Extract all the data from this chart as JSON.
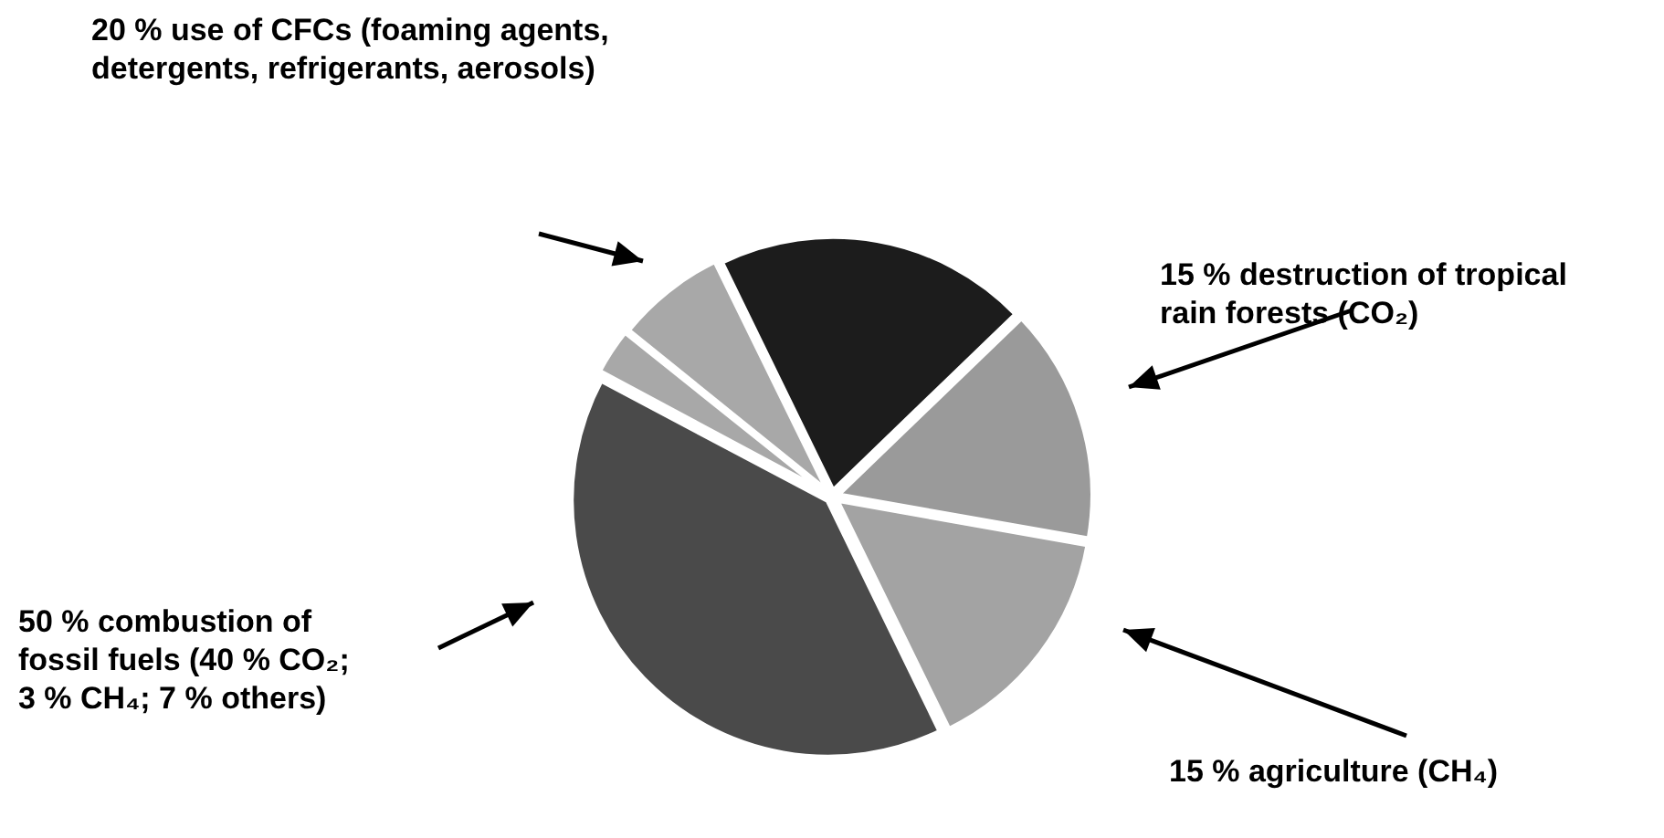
{
  "chart_data": {
    "type": "pie",
    "categories": [
      null,
      null,
      null,
      null,
      null,
      null
    ],
    "values": [
      20,
      15,
      15,
      40,
      3,
      7
    ],
    "colors": [
      "#1c1c1c",
      "#9a9a9a",
      "#a3a3a3",
      "#4a4a4a",
      "#a8a8a8",
      "#a8a8a8"
    ],
    "legend": false,
    "annotations": [
      "20 % use of CFCs (foaming agents, detergents, refrigerants, aerosols)",
      "15 % destruction of tropical rain forests (CO₂)",
      "15 % agriculture (CH₄)",
      "50 % combustion of fossil fuels (40 % CO₂; 3 % CH₄; 7 % others)"
    ]
  }
}
